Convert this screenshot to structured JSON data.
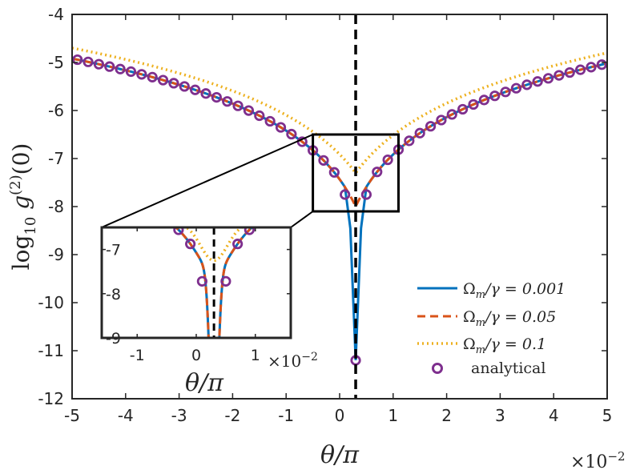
{
  "chart_data": {
    "type": "line",
    "xlabel": "θ/π",
    "ylabel_base": "log",
    "ylabel_sub": "10",
    "ylabel_rest": " g",
    "ylabel_sup": "(2)",
    "ylabel_tail": "(0)",
    "xlim": [
      -5,
      5
    ],
    "ylim": [
      -12,
      -4
    ],
    "x_multiplier": "×10",
    "x_multiplier_exp": "−2",
    "xticks": [
      -5,
      -4,
      -3,
      -2,
      -1,
      0,
      1,
      2,
      3,
      4,
      5
    ],
    "yticks": [
      -12,
      -11,
      -10,
      -9,
      -8,
      -7,
      -6,
      -5,
      -4
    ],
    "xtick_labels": [
      "-5",
      "-4",
      "-3",
      "-2",
      "-1",
      "0",
      "1",
      "2",
      "3",
      "4",
      "5"
    ],
    "ytick_labels": [
      "-12",
      "-11",
      "-10",
      "-9",
      "-8",
      "-7",
      "-6",
      "-5",
      "-4"
    ],
    "vline_x": 0.3,
    "dip_x": 0.3,
    "series": [
      {
        "name": "Ωm/γ = 0.001",
        "label_main": "Ω",
        "label_sub": "m",
        "label_rest": "/γ = 0.001",
        "color": "#0072BD",
        "style": "solid",
        "min": -11.2
      },
      {
        "name": "Ωm/γ = 0.05",
        "label_main": "Ω",
        "label_sub": "m",
        "label_rest": "/γ = 0.05",
        "color": "#D95319",
        "style": "dashed",
        "min": -8.0
      },
      {
        "name": "Ωm/γ = 0.1",
        "label_main": "Ω",
        "label_sub": "m",
        "label_rest": "/γ = 0.1",
        "color": "#EDB120",
        "style": "dotted",
        "min": -7.3
      },
      {
        "name": "analytical",
        "label_main": "analytical",
        "label_sub": "",
        "label_rest": "",
        "color": "#7E2F8E",
        "style": "markers"
      }
    ],
    "analytical_points_x": [
      -4.9,
      -4.7,
      -4.5,
      -4.3,
      -4.1,
      -3.9,
      -3.7,
      -3.5,
      -3.3,
      -3.1,
      -2.9,
      -2.7,
      -2.5,
      -2.3,
      -2.1,
      -1.9,
      -1.7,
      -1.5,
      -1.3,
      -1.1,
      -0.9,
      -0.7,
      -0.5,
      -0.3,
      -0.1,
      0.7,
      0.9,
      1.1,
      1.3,
      1.5,
      1.7,
      1.9,
      2.1,
      2.3,
      2.5,
      2.7,
      2.9,
      3.1,
      3.3,
      3.5,
      3.7,
      3.9,
      4.1,
      4.3,
      4.5,
      4.7,
      4.9
    ],
    "analytical_dip_x": [
      0.1,
      0.5
    ],
    "analytical_center_point": [
      0.3,
      -11.2
    ],
    "zoom_box": {
      "xlim": [
        -0.5,
        1.1
      ],
      "ylim": [
        -8.1,
        -6.5
      ]
    },
    "inset": {
      "xlim": [
        -1.6,
        1.6
      ],
      "ylim": [
        -9.0,
        -6.5
      ],
      "xticks": [
        -1,
        0,
        1
      ],
      "yticks": [
        -9,
        -8,
        -7
      ],
      "xtick_labels": [
        "-1",
        "0",
        "1"
      ],
      "ytick_labels": [
        "-9",
        "-8",
        "-7"
      ],
      "xlabel": "θ/π",
      "x_multiplier": "×10",
      "x_multiplier_exp": "−2",
      "points_x": [
        -0.5,
        -0.3,
        -0.1,
        0.7,
        0.9,
        1.1
      ],
      "dip_points_x": [
        0.1,
        0.5
      ]
    }
  }
}
